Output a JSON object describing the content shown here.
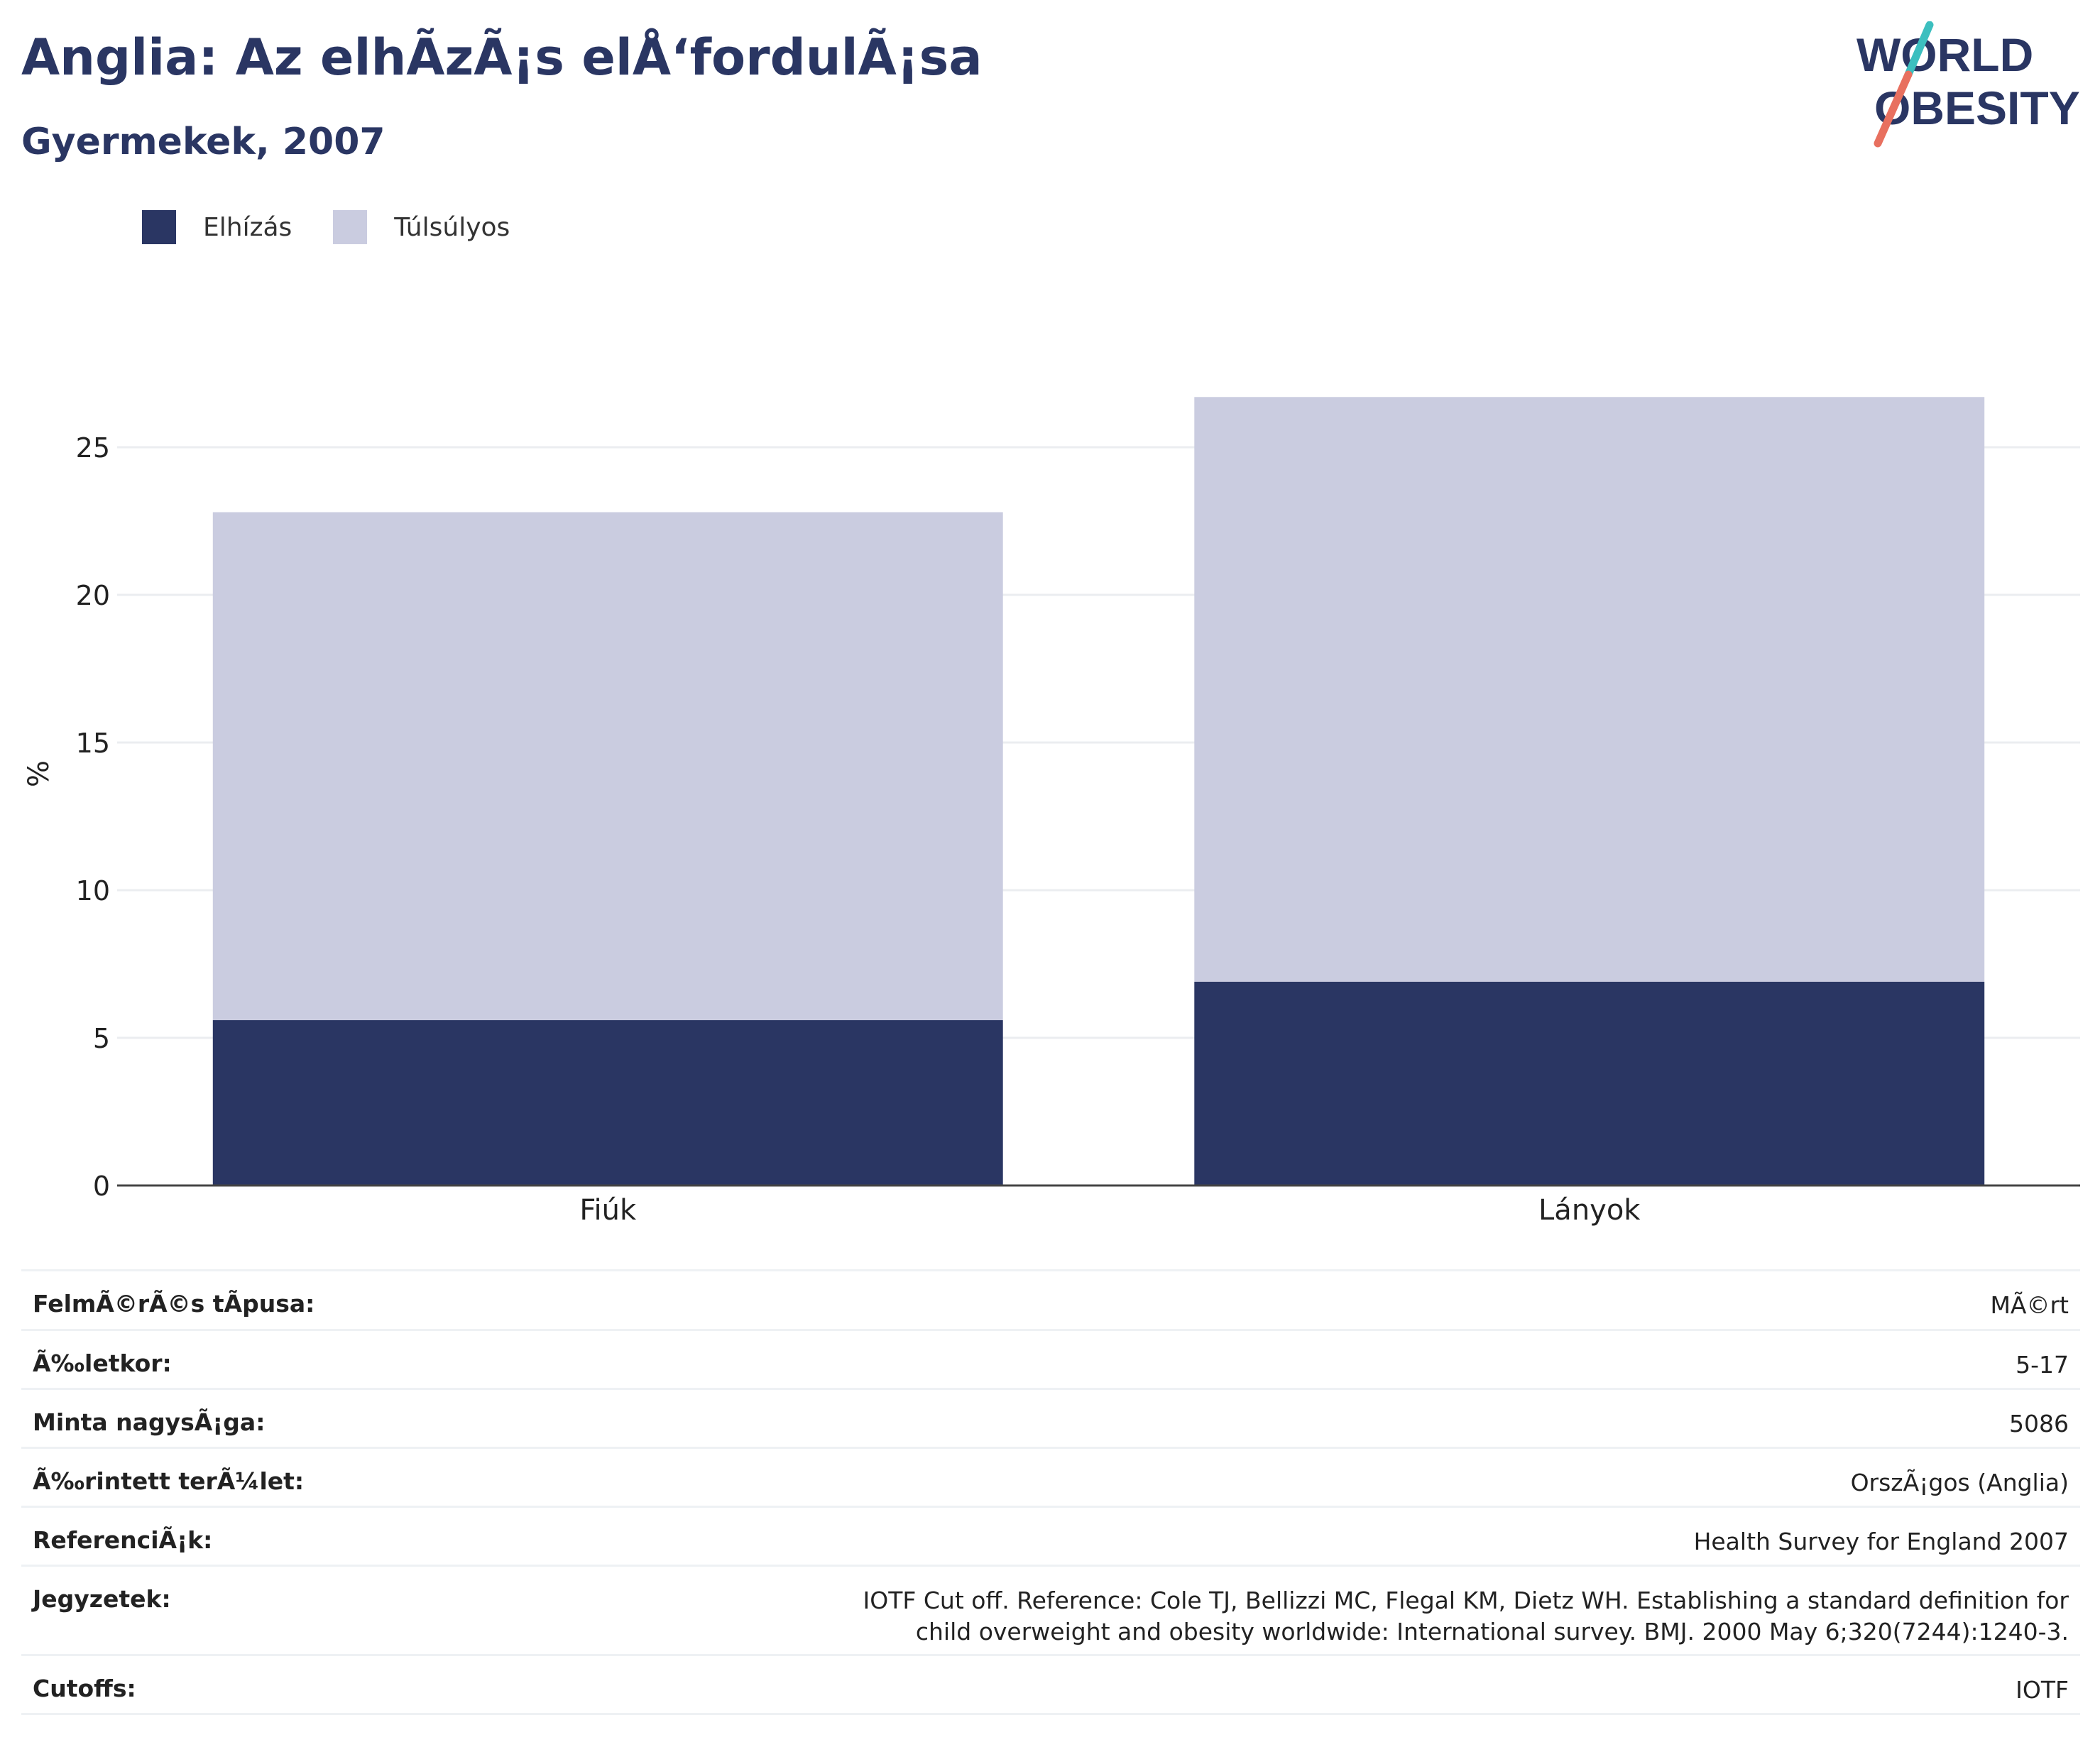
{
  "header": {
    "title": "Anglia: Az elhÃzÃ¡s elÅ‘fordulÃ¡sa",
    "subtitle": "Gyermekek, 2007"
  },
  "logo": {
    "line1": "WORLD",
    "line2": "OBESITY",
    "text_color": "#2a3663",
    "slash_top": "#3cbfbf",
    "slash_bottom": "#e8705f"
  },
  "legend": {
    "items": [
      {
        "label": "Elhízás",
        "color": "#2a3663"
      },
      {
        "label": "Túlsúlyos",
        "color": "#cacce0"
      }
    ]
  },
  "chart_data": {
    "type": "bar",
    "stacked": true,
    "categories": [
      "Fiúk",
      "Lányok"
    ],
    "series": [
      {
        "name": "Elhízás",
        "values": [
          5.6,
          6.9
        ],
        "color": "#2a3663"
      },
      {
        "name": "Túlsúlyos",
        "values": [
          17.2,
          19.8
        ],
        "color": "#cacce0"
      }
    ],
    "ylabel": "%",
    "ylim": [
      0,
      27.5
    ],
    "yticks": [
      0,
      5,
      10,
      15,
      20,
      25
    ],
    "grid": true,
    "legend_position": "top-left"
  },
  "info": {
    "rows": [
      {
        "label": "FelmÃ©rÃ©s tÃpusa:",
        "value": "MÃ©rt"
      },
      {
        "label": "Ã‰letkor:",
        "value": "5-17"
      },
      {
        "label": "Minta nagysÃ¡ga:",
        "value": "5086"
      },
      {
        "label": "Ã‰rintett terÃ¼let:",
        "value": "OrszÃ¡gos (Anglia)"
      },
      {
        "label": "ReferenciÃ¡k:",
        "value": "Health Survey for England 2007"
      },
      {
        "label": "Jegyzetek:",
        "value": "IOTF Cut off. Reference: Cole TJ, Bellizzi MC, Flegal KM, Dietz WH. Establishing a standard definition for child overweight and obesity worldwide: International survey. BMJ. 2000 May 6;320(7244):1240-3."
      },
      {
        "label": "Cutoffs:",
        "value": "IOTF"
      }
    ]
  }
}
